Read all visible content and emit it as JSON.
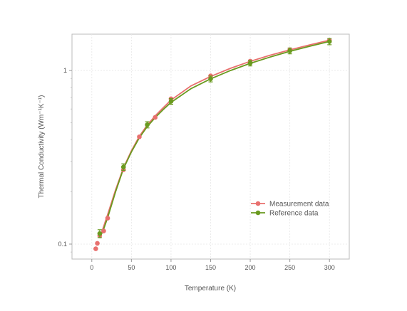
{
  "chart_data": {
    "type": "line",
    "xlabel": "Temperature (K)",
    "ylabel": "Thermal Conductivity (Wm⁻¹K⁻¹)",
    "xlim": [
      -25,
      325
    ],
    "ylim": [
      0.082,
      1.62
    ],
    "yscale": "log",
    "xticks": [
      0,
      50,
      100,
      150,
      200,
      250,
      300
    ],
    "yticks": [
      0.1,
      1
    ],
    "ytick_labels": [
      "0.1",
      "1"
    ],
    "grid": true,
    "legend_position": "lower-right",
    "series": [
      {
        "name": "Measurement data",
        "color": "#e8706e",
        "points": [
          {
            "x": 5,
            "y": 0.094
          },
          {
            "x": 7,
            "y": 0.101
          },
          {
            "x": 10,
            "y": 0.112
          },
          {
            "x": 15,
            "y": 0.119
          },
          {
            "x": 20,
            "y": 0.141
          },
          {
            "x": 40,
            "y": 0.268
          },
          {
            "x": 60,
            "y": 0.415
          },
          {
            "x": 80,
            "y": 0.537
          },
          {
            "x": 100,
            "y": 0.687
          },
          {
            "x": 150,
            "y": 0.932
          },
          {
            "x": 200,
            "y": 1.133
          },
          {
            "x": 250,
            "y": 1.319
          },
          {
            "x": 300,
            "y": 1.496
          }
        ],
        "fit": [
          {
            "x": 10,
            "y": 0.108
          },
          {
            "x": 20,
            "y": 0.148
          },
          {
            "x": 30,
            "y": 0.205
          },
          {
            "x": 40,
            "y": 0.275
          },
          {
            "x": 50,
            "y": 0.345
          },
          {
            "x": 60,
            "y": 0.418
          },
          {
            "x": 70,
            "y": 0.485
          },
          {
            "x": 80,
            "y": 0.548
          },
          {
            "x": 90,
            "y": 0.61
          },
          {
            "x": 100,
            "y": 0.675
          },
          {
            "x": 125,
            "y": 0.815
          },
          {
            "x": 150,
            "y": 0.925
          },
          {
            "x": 175,
            "y": 1.03
          },
          {
            "x": 200,
            "y": 1.13
          },
          {
            "x": 225,
            "y": 1.225
          },
          {
            "x": 250,
            "y": 1.315
          },
          {
            "x": 275,
            "y": 1.405
          },
          {
            "x": 300,
            "y": 1.495
          }
        ]
      },
      {
        "name": "Reference data",
        "color": "#6a9a1f",
        "points": [
          {
            "x": 10,
            "y": 0.115,
            "err": 0.006
          },
          {
            "x": 40,
            "y": 0.278,
            "err": 0.012
          },
          {
            "x": 70,
            "y": 0.487,
            "err": 0.02
          },
          {
            "x": 100,
            "y": 0.664,
            "err": 0.025
          },
          {
            "x": 150,
            "y": 0.895,
            "err": 0.035
          },
          {
            "x": 200,
            "y": 1.103,
            "err": 0.04
          },
          {
            "x": 250,
            "y": 1.298,
            "err": 0.05
          },
          {
            "x": 300,
            "y": 1.468,
            "err": 0.06
          }
        ],
        "fit": [
          {
            "x": 13,
            "y": 0.115
          },
          {
            "x": 20,
            "y": 0.142
          },
          {
            "x": 30,
            "y": 0.2
          },
          {
            "x": 40,
            "y": 0.272
          },
          {
            "x": 50,
            "y": 0.34
          },
          {
            "x": 60,
            "y": 0.41
          },
          {
            "x": 70,
            "y": 0.475
          },
          {
            "x": 80,
            "y": 0.535
          },
          {
            "x": 90,
            "y": 0.595
          },
          {
            "x": 100,
            "y": 0.655
          },
          {
            "x": 125,
            "y": 0.785
          },
          {
            "x": 150,
            "y": 0.895
          },
          {
            "x": 175,
            "y": 1.0
          },
          {
            "x": 200,
            "y": 1.1
          },
          {
            "x": 225,
            "y": 1.195
          },
          {
            "x": 250,
            "y": 1.29
          },
          {
            "x": 275,
            "y": 1.38
          },
          {
            "x": 300,
            "y": 1.47
          }
        ]
      }
    ]
  }
}
